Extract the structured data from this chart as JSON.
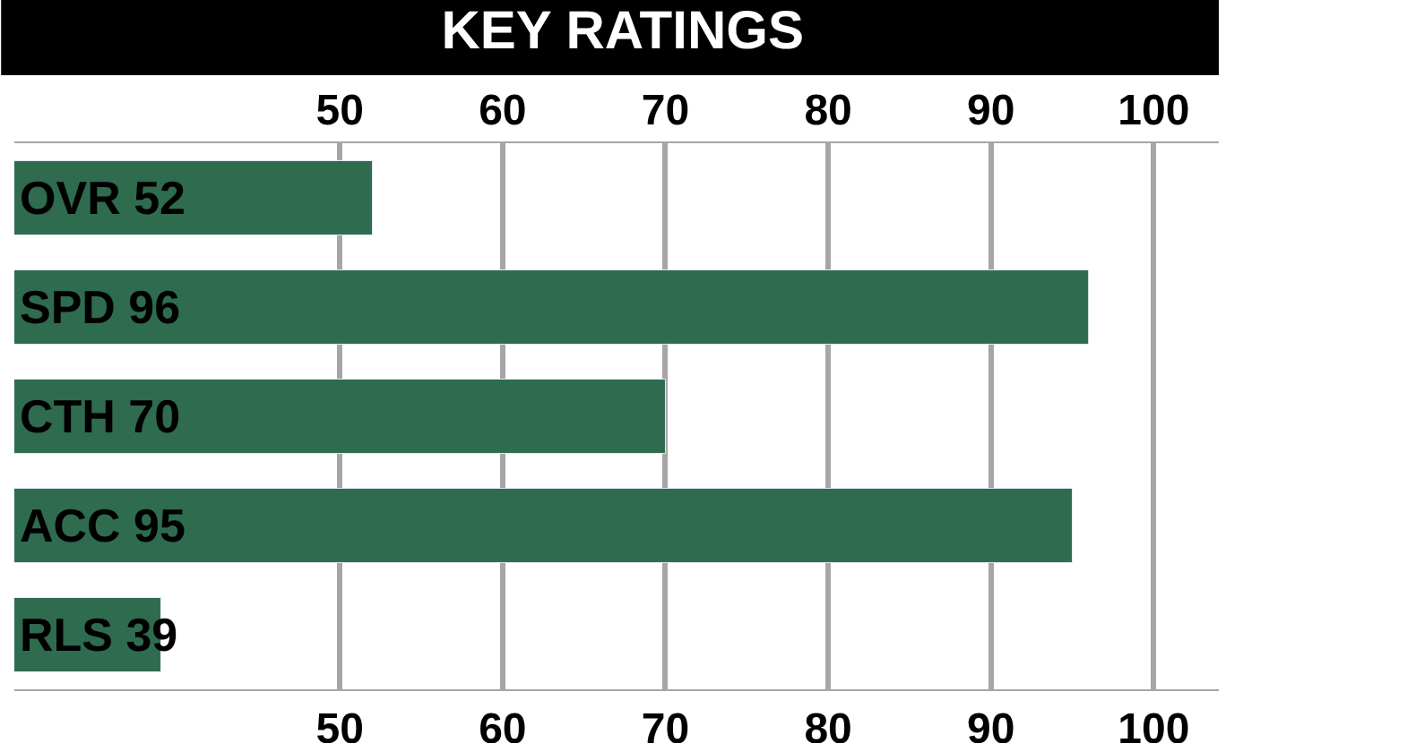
{
  "chart_data": {
    "type": "bar",
    "orientation": "horizontal",
    "title": "KEY RATINGS",
    "categories": [
      "OVR 52",
      "SPD 96",
      "CTH 70",
      "ACC 95",
      "RLS 39"
    ],
    "values": [
      52,
      96,
      70,
      95,
      39
    ],
    "color": "#2e6b4f",
    "xlim": [
      30,
      104
    ],
    "xticks": [
      50,
      60,
      70,
      80,
      90,
      100
    ],
    "x2lim": [
      30,
      104
    ],
    "x2ticks": [
      50,
      60,
      70,
      80,
      90,
      100
    ],
    "grid": "x"
  }
}
